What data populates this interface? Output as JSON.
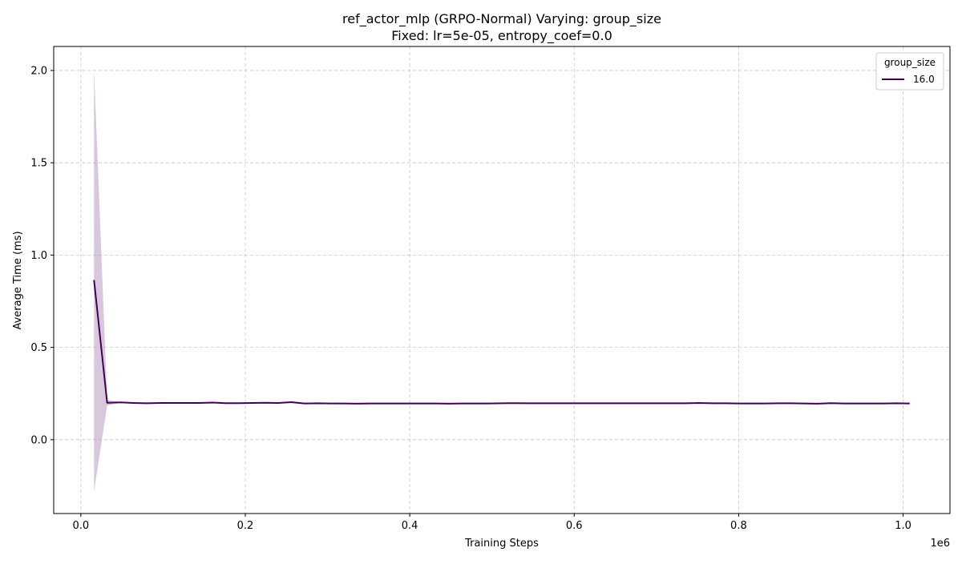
{
  "chart_data": {
    "type": "line",
    "title_line1": "ref_actor_mlp (GRPO-Normal) Varying: group_size",
    "title_line2": "Fixed: lr=5e-05, entropy_coef=0.0",
    "xlabel": "Training Steps",
    "ylabel": "Average Time (ms)",
    "x_offset_label": "1e6",
    "xlim": [
      -0.033,
      1.057
    ],
    "ylim": [
      -0.4,
      2.13
    ],
    "x_ticks": [
      0.0,
      0.2,
      0.4,
      0.6,
      0.8,
      1.0
    ],
    "x_tick_labels": [
      "0.0",
      "0.2",
      "0.4",
      "0.6",
      "0.8",
      "1.0"
    ],
    "y_ticks": [
      0.0,
      0.5,
      1.0,
      1.5,
      2.0
    ],
    "y_tick_labels": [
      "0.0",
      "0.5",
      "1.0",
      "1.5",
      "2.0"
    ],
    "grid": true,
    "legend": {
      "title": "group_size",
      "placement": "top-right",
      "entries": [
        {
          "label": "16.0",
          "color": "#440154"
        }
      ]
    },
    "series": [
      {
        "name": "16.0",
        "color": "#440154",
        "band_color": "#b69bc2",
        "x": [
          0.016,
          0.032,
          0.048,
          0.064,
          0.08,
          0.096,
          0.112,
          0.128,
          0.144,
          0.16,
          0.176,
          0.192,
          0.208,
          0.224,
          0.24,
          0.256,
          0.272,
          0.288,
          0.304,
          0.32,
          0.336,
          0.352,
          0.368,
          0.384,
          0.4,
          0.416,
          0.432,
          0.448,
          0.464,
          0.48,
          0.496,
          0.512,
          0.528,
          0.544,
          0.56,
          0.576,
          0.592,
          0.608,
          0.624,
          0.64,
          0.656,
          0.672,
          0.688,
          0.704,
          0.72,
          0.736,
          0.752,
          0.768,
          0.784,
          0.8,
          0.816,
          0.832,
          0.848,
          0.864,
          0.88,
          0.896,
          0.912,
          0.928,
          0.944,
          0.96,
          0.976,
          0.992,
          1.008
        ],
        "y": [
          0.865,
          0.2,
          0.202,
          0.199,
          0.197,
          0.199,
          0.199,
          0.199,
          0.199,
          0.201,
          0.198,
          0.198,
          0.199,
          0.2,
          0.199,
          0.203,
          0.196,
          0.197,
          0.196,
          0.196,
          0.195,
          0.196,
          0.196,
          0.196,
          0.196,
          0.196,
          0.196,
          0.195,
          0.196,
          0.196,
          0.196,
          0.197,
          0.198,
          0.197,
          0.197,
          0.197,
          0.197,
          0.197,
          0.197,
          0.197,
          0.197,
          0.197,
          0.197,
          0.197,
          0.197,
          0.197,
          0.199,
          0.197,
          0.197,
          0.196,
          0.196,
          0.196,
          0.197,
          0.197,
          0.196,
          0.195,
          0.198,
          0.196,
          0.196,
          0.196,
          0.196,
          0.197,
          0.196
        ],
        "y_lower": [
          -0.28,
          0.185,
          0.2,
          0.197,
          0.195,
          0.197,
          0.197,
          0.197,
          0.197,
          0.198,
          0.196,
          0.196,
          0.197,
          0.198,
          0.197,
          0.199,
          0.193,
          0.195,
          0.194,
          0.194,
          0.193,
          0.194,
          0.194,
          0.194,
          0.194,
          0.194,
          0.194,
          0.193,
          0.194,
          0.194,
          0.194,
          0.195,
          0.196,
          0.195,
          0.195,
          0.195,
          0.195,
          0.195,
          0.195,
          0.195,
          0.195,
          0.195,
          0.195,
          0.195,
          0.195,
          0.195,
          0.197,
          0.195,
          0.195,
          0.194,
          0.194,
          0.194,
          0.195,
          0.195,
          0.194,
          0.193,
          0.196,
          0.194,
          0.194,
          0.194,
          0.194,
          0.195,
          0.194
        ],
        "y_upper": [
          2.01,
          0.215,
          0.204,
          0.201,
          0.199,
          0.201,
          0.201,
          0.201,
          0.201,
          0.204,
          0.2,
          0.2,
          0.201,
          0.202,
          0.201,
          0.207,
          0.199,
          0.199,
          0.198,
          0.198,
          0.197,
          0.198,
          0.198,
          0.198,
          0.198,
          0.198,
          0.198,
          0.197,
          0.198,
          0.198,
          0.198,
          0.199,
          0.2,
          0.199,
          0.199,
          0.199,
          0.199,
          0.199,
          0.199,
          0.199,
          0.199,
          0.199,
          0.199,
          0.199,
          0.199,
          0.199,
          0.201,
          0.199,
          0.199,
          0.198,
          0.198,
          0.198,
          0.199,
          0.199,
          0.198,
          0.197,
          0.2,
          0.198,
          0.198,
          0.198,
          0.198,
          0.199,
          0.198
        ]
      }
    ]
  }
}
